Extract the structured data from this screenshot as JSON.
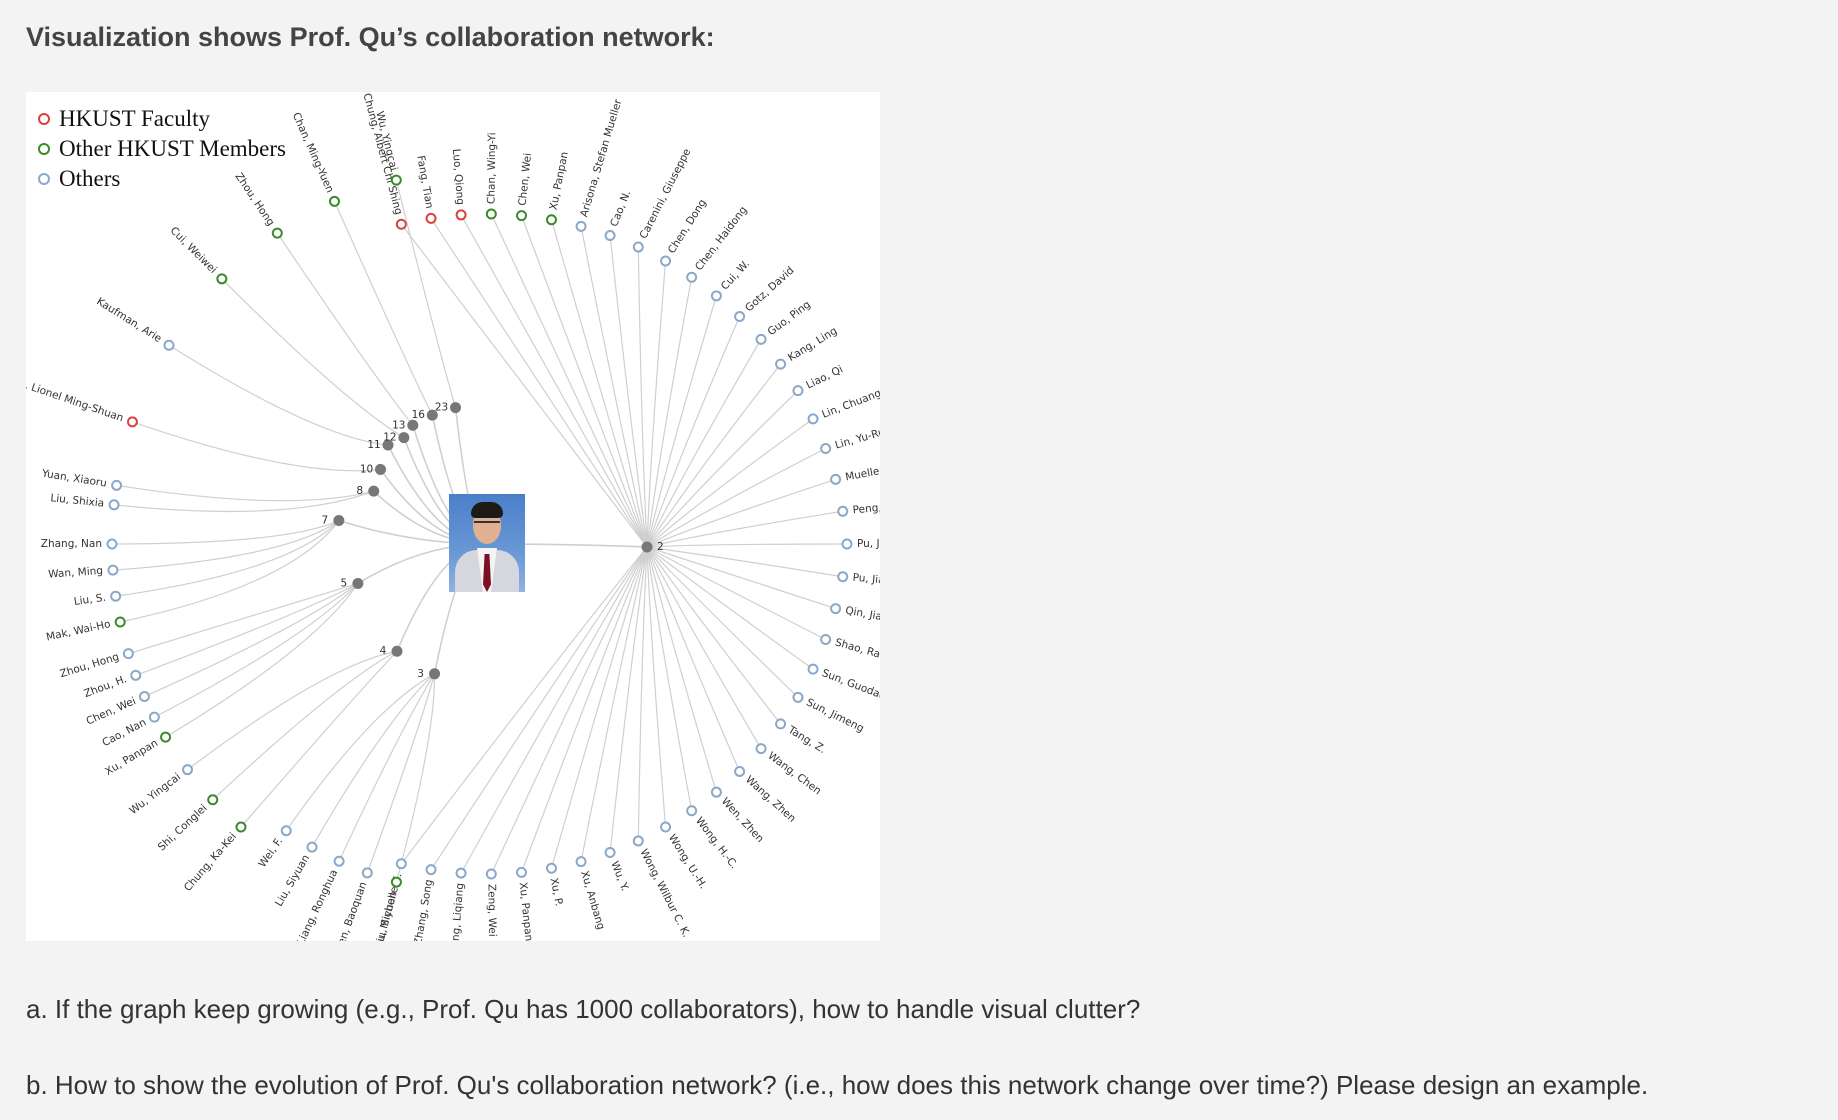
{
  "heading": "Visualization shows Prof. Qu’s collaboration network:",
  "legend": [
    {
      "label": "HKUST Faculty",
      "color": "#d9423a"
    },
    {
      "label": "Other HKUST Members",
      "color": "#3a8a2a"
    },
    {
      "label": "Others",
      "color": "#8aa8c8"
    }
  ],
  "colors": {
    "faculty": "#d9423a",
    "member": "#3a8a2a",
    "other": "#8aa8c8",
    "edge": "#cfcfcf",
    "hub": "#777777"
  },
  "center": {
    "image": "photo-of-prof-qu"
  },
  "groups": [
    {
      "count": "2",
      "collaborators": [
        {
          "name": "Chung, Albert Chi Shing",
          "type": "faculty"
        },
        {
          "name": "Fang, Tian",
          "type": "faculty"
        },
        {
          "name": "Luo, Qiong",
          "type": "faculty"
        },
        {
          "name": "Chan, Wing-Yi",
          "type": "member"
        },
        {
          "name": "Chen, Wei",
          "type": "member"
        },
        {
          "name": "Xu, Panpan",
          "type": "member"
        },
        {
          "name": "Arisona, Stefan Mueller",
          "type": "other"
        },
        {
          "name": "Cao, N.",
          "type": "other"
        },
        {
          "name": "Carenini, Giuseppe",
          "type": "other"
        },
        {
          "name": "Chen, Dong",
          "type": "other"
        },
        {
          "name": "Chen, Haidong",
          "type": "other"
        },
        {
          "name": "Cui, W.",
          "type": "other"
        },
        {
          "name": "Gotz, David",
          "type": "other"
        },
        {
          "name": "Guo, Ping",
          "type": "other"
        },
        {
          "name": "Kang, Ling",
          "type": "other"
        },
        {
          "name": "Liao, Qi",
          "type": "other"
        },
        {
          "name": "Lin, Chuang",
          "type": "other"
        },
        {
          "name": "Lin, Yu-Ru",
          "type": "other"
        },
        {
          "name": "Mueller, Klaus",
          "type": "other"
        },
        {
          "name": "Peng, Qunsheng",
          "type": "other"
        },
        {
          "name": "Pu, J.",
          "type": "other"
        },
        {
          "name": "Pu, Jiansu",
          "type": "other"
        },
        {
          "name": "Qin, Jiafa",
          "type": "other"
        },
        {
          "name": "Shao, Ran",
          "type": "other"
        },
        {
          "name": "Sun, Guodao",
          "type": "other"
        },
        {
          "name": "Sun, Jimeng",
          "type": "other"
        },
        {
          "name": "Tang, Z.",
          "type": "other"
        },
        {
          "name": "Wang, Chen",
          "type": "other"
        },
        {
          "name": "Wang, Zhen",
          "type": "other"
        },
        {
          "name": "Wen, Zhen",
          "type": "other"
        },
        {
          "name": "Wong, H.-C.",
          "type": "other"
        },
        {
          "name": "Wong, U.-H.",
          "type": "other"
        },
        {
          "name": "Wong, Wilbur C. K.",
          "type": "other"
        },
        {
          "name": "Wu, Y.",
          "type": "other"
        },
        {
          "name": "Xu, Anbang",
          "type": "other"
        },
        {
          "name": "Xu, P.",
          "type": "other"
        },
        {
          "name": "Xu, Panpan",
          "type": "other"
        },
        {
          "name": "Zeng, Wei",
          "type": "other"
        },
        {
          "name": "Zhang, Liqiang",
          "type": "other"
        },
        {
          "name": "Zhang, Song",
          "type": "other"
        },
        {
          "name": "Zhou, Michelle X.",
          "type": "other"
        }
      ]
    },
    {
      "count": "3",
      "collaborators": [
        {
          "name": "Liu, Siyuan",
          "type": "member"
        },
        {
          "name": "Chen, Baoquan",
          "type": "other"
        },
        {
          "name": "Liang, Ronghua",
          "type": "other"
        },
        {
          "name": "Liu, Siyuan",
          "type": "other"
        },
        {
          "name": "Wei, F.",
          "type": "other"
        }
      ]
    },
    {
      "count": "4",
      "collaborators": [
        {
          "name": "Chung, Ka-Kei",
          "type": "member"
        },
        {
          "name": "Shi, Conglei",
          "type": "member"
        },
        {
          "name": "Wu, Yingcai",
          "type": "other"
        }
      ]
    },
    {
      "count": "5",
      "collaborators": [
        {
          "name": "Xu, Panpan",
          "type": "member"
        },
        {
          "name": "Cao, Nan",
          "type": "other"
        },
        {
          "name": "Chen, Wei",
          "type": "other"
        },
        {
          "name": "Zhou, H.",
          "type": "other"
        },
        {
          "name": "Zhou, Hong",
          "type": "other"
        }
      ]
    },
    {
      "count": "7",
      "collaborators": [
        {
          "name": "Mak, Wai-Ho",
          "type": "member"
        },
        {
          "name": "Liu, S.",
          "type": "other"
        },
        {
          "name": "Wan, Ming",
          "type": "other"
        },
        {
          "name": "Zhang, Nan",
          "type": "other"
        }
      ]
    },
    {
      "count": "8",
      "collaborators": [
        {
          "name": "Liu, Shixia",
          "type": "other"
        },
        {
          "name": "Yuan, Xiaoru",
          "type": "other"
        }
      ]
    },
    {
      "count": "10",
      "collaborators": [
        {
          "name": "Ni, Lionel Ming-Shuan",
          "type": "faculty"
        }
      ]
    },
    {
      "count": "11",
      "collaborators": [
        {
          "name": "Kaufman, Arie",
          "type": "other"
        }
      ]
    },
    {
      "count": "12",
      "collaborators": [
        {
          "name": "Cui, Weiwei",
          "type": "member"
        }
      ]
    },
    {
      "count": "13",
      "collaborators": [
        {
          "name": "Zhou, Hong",
          "type": "member"
        }
      ]
    },
    {
      "count": "16",
      "collaborators": [
        {
          "name": "Chan, Ming-Yuen",
          "type": "member"
        }
      ]
    },
    {
      "count": "23",
      "collaborators": [
        {
          "name": "Wu, Yingcai",
          "type": "member"
        }
      ]
    }
  ],
  "questions": {
    "a": "a. If the graph keep growing (e.g., Prof. Qu has 1000 collaborators), how to handle visual clutter?",
    "b": "b. How to show the evolution of Prof. Qu's collaboration network? (i.e., how does this network change over time?) Please design an example."
  }
}
